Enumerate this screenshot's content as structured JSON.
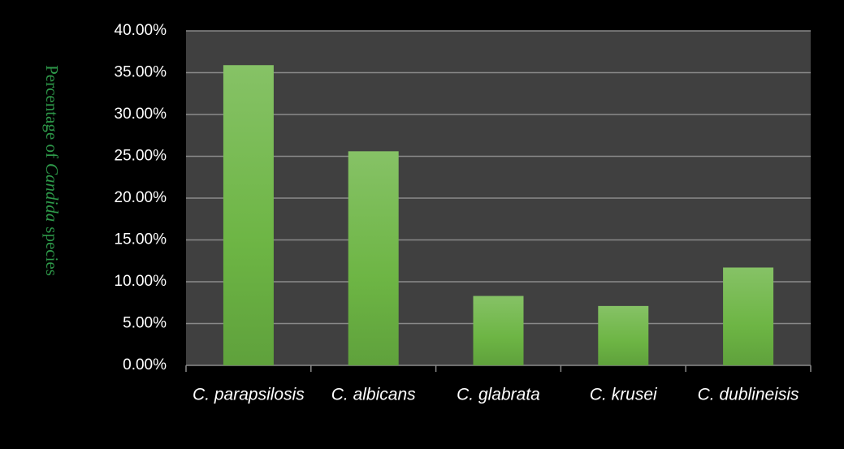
{
  "chart_data": {
    "type": "bar",
    "y_label_parts": [
      "Percentage of",
      "Candida",
      "species"
    ],
    "categories": [
      "C. parapsilosis",
      "C. albicans",
      "C. glabrata",
      "C. krusei",
      "C. dublineisis"
    ],
    "values": [
      35.9,
      25.6,
      8.3,
      7.1,
      11.7
    ],
    "color": "#74b84e",
    "ylim": [
      0,
      40
    ],
    "yticks": [
      {
        "value": 0,
        "label": "0.00%"
      },
      {
        "value": 5,
        "label": "5.00%"
      },
      {
        "value": 10,
        "label": "10.00%"
      },
      {
        "value": 15,
        "label": "15.00%"
      },
      {
        "value": 20,
        "label": "20.00%"
      },
      {
        "value": 25,
        "label": "25.00%"
      },
      {
        "value": 30,
        "label": "30.00%"
      },
      {
        "value": 35,
        "label": "35.00%"
      },
      {
        "value": 40,
        "label": "40.00%"
      }
    ],
    "grid": true
  }
}
